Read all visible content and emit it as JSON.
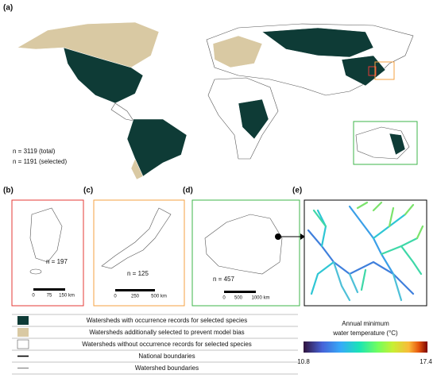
{
  "panels": {
    "a": {
      "letter": "(a)",
      "n_total": "n = 3119 (total)",
      "n_selected": "n = 1191 (selected)"
    },
    "b": {
      "letter": "(b)",
      "n": "n = 197",
      "scale": [
        "0",
        "75",
        "150 km"
      ]
    },
    "c": {
      "letter": "(c)",
      "n": "n = 125",
      "scale": [
        "0",
        "250",
        "500 km"
      ]
    },
    "d": {
      "letter": "(d)",
      "n": "n = 457",
      "scale": [
        "0",
        "500",
        "1000 km"
      ]
    },
    "e": {
      "letter": "(e)"
    }
  },
  "legend": [
    "Watersheds with occurrence records for selected species",
    "Watersheds additionally selected to prevent model bias",
    "Watersheds without occurrence records for selected species",
    "National boundaries",
    "Watershed boundaries"
  ],
  "colorbar": {
    "title": [
      "Annual minimum",
      "water temperature (°C)"
    ],
    "min": "10.8",
    "max": "17.4"
  }
}
